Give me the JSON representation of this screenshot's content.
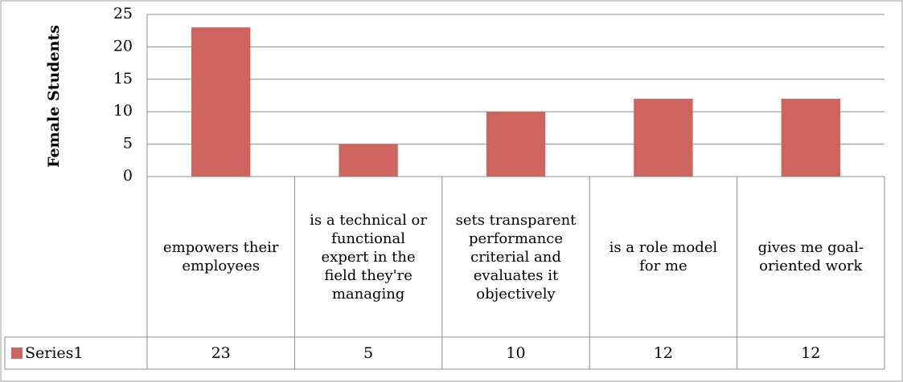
{
  "chart_data": {
    "type": "bar",
    "y_axis_label": "Female Students",
    "categories": [
      "empowers their employees",
      "is a technical or functional expert in the field they're managing",
      "sets transparent performance criterial and evaluates it objectively",
      "is a role model for me",
      "gives me goal-oriented work"
    ],
    "series": [
      {
        "name": "Series1",
        "color": "#cd645f",
        "values": [
          23,
          5,
          10,
          12,
          12
        ]
      }
    ],
    "ylim": [
      0,
      25
    ],
    "yticks": [
      0,
      5,
      10,
      15,
      20,
      25
    ],
    "grid": true,
    "data_table": true
  }
}
